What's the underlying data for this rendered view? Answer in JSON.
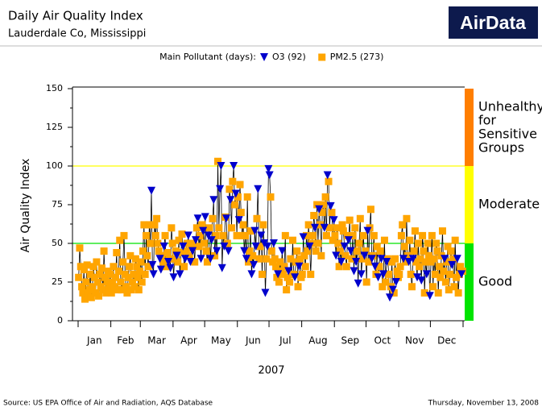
{
  "chart_data": {
    "type": "line",
    "title": "Daily Air Quality Index",
    "subtitle": "Lauderdale Co, Mississippi",
    "logo": "AirData",
    "legend_title": "Main Pollutant (days):",
    "xlabel": "2007",
    "ylabel": "Air Quality Index",
    "source": "Source: US EPA  Office of Air and Radiation, AQS Database",
    "date": "Thursday, November 13, 2008",
    "line_color": "#000000",
    "xlim": [
      0,
      365
    ],
    "xticks": [
      {
        "value": 0,
        "label": "Jan"
      },
      {
        "value": 31,
        "label": "Feb"
      },
      {
        "value": 59,
        "label": "Mar"
      },
      {
        "value": 90,
        "label": "Apr"
      },
      {
        "value": 120,
        "label": "May"
      },
      {
        "value": 151,
        "label": "Jun"
      },
      {
        "value": 181,
        "label": "Jul"
      },
      {
        "value": 212,
        "label": "Aug"
      },
      {
        "value": 243,
        "label": "Sep"
      },
      {
        "value": 273,
        "label": "Oct"
      },
      {
        "value": 304,
        "label": "Nov"
      },
      {
        "value": 334,
        "label": "Dec"
      }
    ],
    "ylim": [
      0,
      150
    ],
    "yticks": [
      0,
      25,
      50,
      75,
      100,
      125,
      150
    ],
    "bands": [
      {
        "label": "Good",
        "from": 0,
        "to": 50,
        "color": "#00e400"
      },
      {
        "label": "Moderate",
        "from": 50,
        "to": 100,
        "color": "#ffff00"
      },
      {
        "label": "Unhealthy for Sensitive Groups",
        "from": 100,
        "to": 150,
        "color": "#ff7e00"
      }
    ],
    "series": [
      {
        "name": "O3 (92)",
        "color": "#0000cc",
        "marker": "triangle",
        "values": [
          null,
          null,
          null,
          null,
          null,
          null,
          null,
          null,
          null,
          null,
          null,
          null,
          null,
          null,
          null,
          null,
          null,
          null,
          null,
          null,
          null,
          null,
          null,
          null,
          null,
          null,
          null,
          null,
          null,
          null,
          null,
          null,
          null,
          null,
          null,
          null,
          null,
          null,
          null,
          null,
          null,
          null,
          null,
          null,
          null,
          null,
          null,
          null,
          null,
          null,
          null,
          null,
          null,
          null,
          null,
          null,
          null,
          null,
          null,
          null,
          null,
          null,
          null,
          null,
          null,
          null,
          null,
          null,
          null,
          84,
          36,
          30,
          null,
          null,
          null,
          null,
          null,
          40,
          33,
          null,
          null,
          48,
          null,
          null,
          null,
          38,
          null,
          34,
          null,
          null,
          28,
          null,
          null,
          42,
          null,
          null,
          30,
          null,
          null,
          48,
          null,
          40,
          null,
          null,
          55,
          null,
          38,
          null,
          45,
          null,
          null,
          52,
          null,
          66,
          null,
          null,
          40,
          null,
          58,
          null,
          67,
          null,
          null,
          55,
          null,
          40,
          52,
          null,
          78,
          null,
          null,
          45,
          null,
          null,
          85,
          100,
          34,
          null,
          48,
          null,
          66,
          null,
          45,
          null,
          78,
          null,
          null,
          100,
          null,
          82,
          null,
          null,
          65,
          null,
          null,
          null,
          null,
          45,
          null,
          40,
          null,
          null,
          null,
          null,
          30,
          null,
          36,
          58,
          48,
          null,
          85,
          null,
          null,
          55,
          null,
          null,
          50,
          18,
          null,
          48,
          98,
          94,
          null,
          null,
          null,
          50,
          null,
          null,
          null,
          30,
          null,
          null,
          null,
          45,
          null,
          null,
          null,
          null,
          null,
          32,
          null,
          null,
          null,
          null,
          null,
          28,
          null,
          null,
          null,
          35,
          null,
          null,
          null,
          54,
          null,
          null,
          null,
          null,
          null,
          48,
          null,
          null,
          null,
          null,
          60,
          null,
          null,
          null,
          72,
          null,
          null,
          null,
          null,
          60,
          null,
          null,
          94,
          null,
          null,
          74,
          null,
          null,
          65,
          null,
          42,
          null,
          null,
          null,
          null,
          38,
          null,
          null,
          48,
          null,
          null,
          null,
          52,
          null,
          45,
          null,
          null,
          32,
          null,
          38,
          null,
          24,
          null,
          null,
          30,
          null,
          null,
          42,
          null,
          null,
          58,
          null,
          null,
          null,
          40,
          null,
          null,
          35,
          null,
          null,
          28,
          null,
          null,
          40,
          null,
          30,
          null,
          null,
          38,
          null,
          null,
          15,
          null,
          null,
          20,
          null,
          null,
          25,
          null,
          null,
          null,
          null,
          null,
          null,
          40,
          null,
          null,
          null,
          null,
          38,
          null,
          null,
          null,
          40,
          null,
          null,
          null,
          28,
          null,
          null,
          null,
          26,
          null,
          null,
          null,
          null,
          30,
          null,
          null,
          16,
          null,
          null,
          null,
          null,
          null,
          null,
          null,
          null,
          null,
          null,
          null,
          null,
          null,
          40,
          null,
          null,
          null,
          null,
          null,
          null,
          36,
          null,
          null,
          null,
          null,
          40,
          null,
          null,
          null,
          30,
          null
        ]
      },
      {
        "name": "PM2.5 (273)",
        "color": "#ffa500",
        "marker": "square",
        "values": [
          28,
          47,
          35,
          22,
          18,
          33,
          14,
          25,
          36,
          17,
          20,
          30,
          15,
          22,
          35,
          28,
          18,
          38,
          25,
          16,
          30,
          22,
          34,
          20,
          45,
          28,
          18,
          25,
          32,
          22,
          30,
          18,
          25,
          35,
          22,
          28,
          44,
          20,
          32,
          52,
          25,
          20,
          38,
          55,
          30,
          22,
          18,
          28,
          35,
          42,
          20,
          25,
          30,
          22,
          40,
          35,
          28,
          20,
          32,
          38,
          25,
          45,
          62,
          30,
          55,
          42,
          35,
          62,
          50,
          null,
          null,
          null,
          62,
          55,
          66,
          50,
          45,
          null,
          null,
          42,
          38,
          null,
          55,
          35,
          44,
          null,
          40,
          null,
          60,
          50,
          null,
          40,
          45,
          null,
          38,
          52,
          null,
          44,
          56,
          null,
          35,
          null,
          45,
          50,
          null,
          42,
          null,
          47,
          null,
          50,
          38,
          null,
          60,
          null,
          48,
          55,
          null,
          62,
          null,
          50,
          null,
          45,
          38,
          null,
          60,
          null,
          null,
          66,
          null,
          42,
          55,
          null,
          103,
          60,
          null,
          null,
          null,
          55,
          null,
          67,
          null,
          50,
          null,
          85,
          null,
          60,
          90,
          null,
          75,
          null,
          55,
          80,
          null,
          88,
          70,
          55,
          62,
          null,
          55,
          null,
          80,
          38,
          45,
          58,
          null,
          42,
          null,
          null,
          null,
          66,
          null,
          40,
          48,
          null,
          30,
          62,
          null,
          null,
          40,
          null,
          null,
          null,
          80,
          45,
          38,
          null,
          40,
          35,
          28,
          null,
          25,
          38,
          32,
          null,
          30,
          35,
          55,
          20,
          28,
          null,
          25,
          40,
          30,
          52,
          30,
          null,
          38,
          45,
          22,
          null,
          40,
          28,
          30,
          null,
          42,
          35,
          55,
          45,
          62,
          null,
          30,
          50,
          55,
          68,
          null,
          45,
          75,
          50,
          null,
          62,
          42,
          70,
          75,
          null,
          80,
          55,
          null,
          90,
          60,
          null,
          70,
          52,
          null,
          55,
          null,
          60,
          50,
          35,
          45,
          null,
          62,
          58,
          null,
          42,
          35,
          55,
          null,
          65,
          null,
          40,
          55,
          null,
          60,
          null,
          45,
          null,
          50,
          66,
          null,
          40,
          55,
          null,
          45,
          25,
          null,
          38,
          60,
          72,
          null,
          42,
          55,
          null,
          30,
          48,
          null,
          35,
          45,
          null,
          22,
          null,
          52,
          25,
          null,
          40,
          30,
          null,
          22,
          38,
          null,
          18,
          40,
          null,
          32,
          28,
          30,
          35,
          55,
          62,
          null,
          48,
          38,
          66,
          42,
          null,
          52,
          30,
          22,
          null,
          45,
          58,
          38,
          null,
          50,
          35,
          40,
          null,
          55,
          45,
          18,
          38,
          null,
          50,
          42,
          null,
          38,
          55,
          22,
          40,
          30,
          50,
          45,
          18,
          35,
          28,
          42,
          58,
          32,
          null,
          25,
          38,
          48,
          20,
          30,
          45,
          null,
          40,
          22,
          52,
          28,
          null,
          18,
          30,
          35,
          null,
          32
        ]
      }
    ]
  }
}
